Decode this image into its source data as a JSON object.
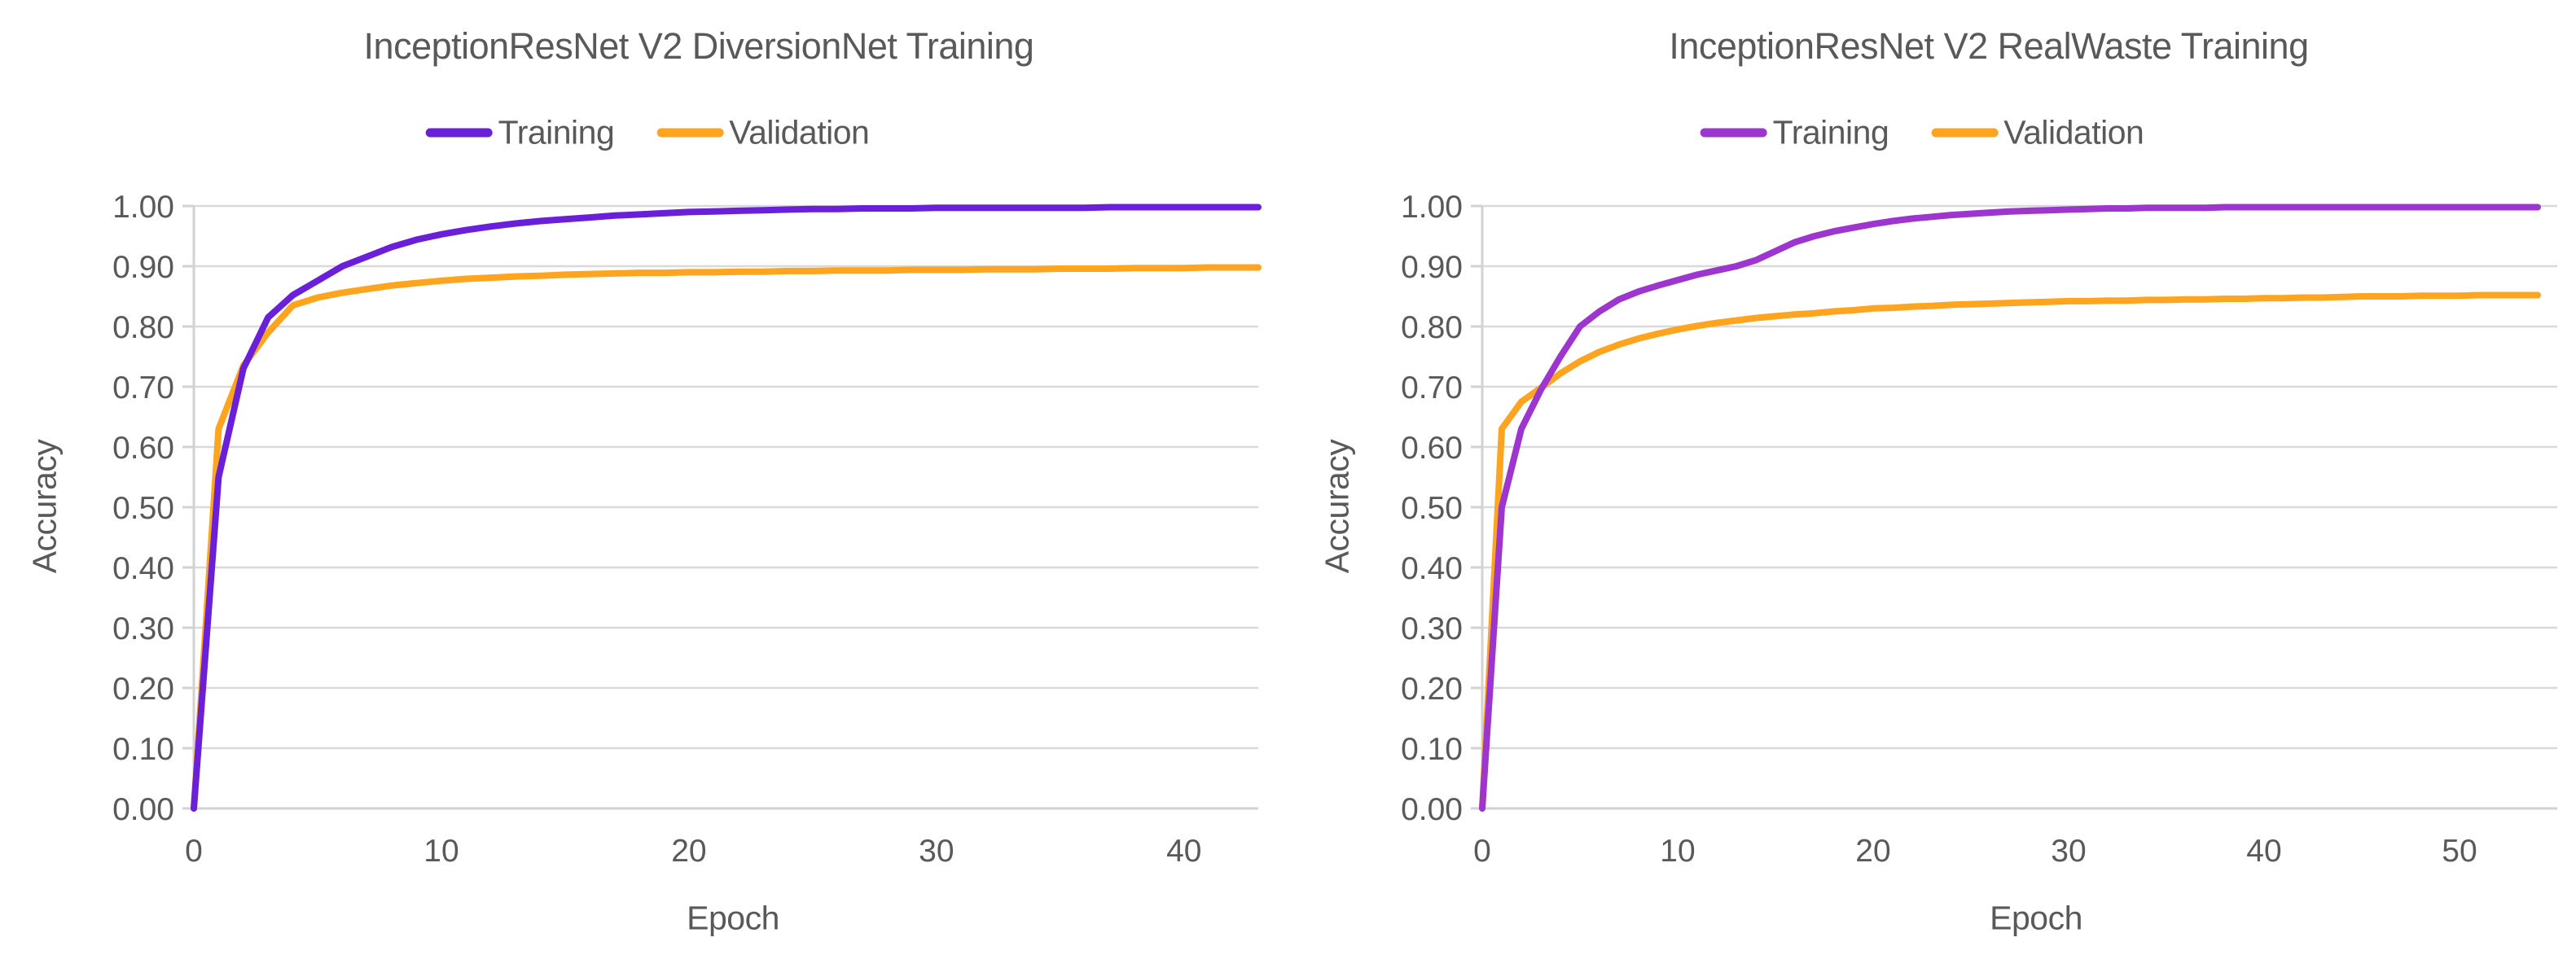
{
  "style": {
    "background": "#ffffff",
    "text_color": "#595959",
    "grid_color": "#d9d9d9",
    "axis_color": "#d2d2d2",
    "training_color_left": "#6a1fd9",
    "training_color_right": "#9c36ce",
    "validation_color": "#ffa41e"
  },
  "chart_data": [
    {
      "type": "line",
      "title": "InceptionResNet V2 DiversionNet Training",
      "xlabel": "Epoch",
      "ylabel": "Accuracy",
      "xlim": [
        0,
        43
      ],
      "ylim": [
        0.0,
        1.0
      ],
      "grid": "horizontal",
      "legend_position": "top-center",
      "x_tick_values": [
        0,
        10,
        20,
        30,
        40
      ],
      "x_tick_labels": [
        "0",
        "10",
        "20",
        "30",
        "40"
      ],
      "y_tick_values": [
        0.0,
        0.1,
        0.2,
        0.3,
        0.4,
        0.5,
        0.6,
        0.7,
        0.8,
        0.9,
        1.0
      ],
      "y_tick_labels": [
        "0.00",
        "0.10",
        "0.20",
        "0.30",
        "0.40",
        "0.50",
        "0.60",
        "0.70",
        "0.80",
        "0.90",
        "1.00"
      ],
      "series": [
        {
          "name": "Training",
          "color": "#6a1fd9",
          "x_start": 0,
          "x_step": 1,
          "values": [
            0.0,
            0.55,
            0.73,
            0.815,
            0.852,
            0.876,
            0.9,
            0.916,
            0.932,
            0.944,
            0.953,
            0.96,
            0.966,
            0.971,
            0.975,
            0.978,
            0.981,
            0.984,
            0.986,
            0.988,
            0.99,
            0.991,
            0.992,
            0.993,
            0.994,
            0.995,
            0.995,
            0.996,
            0.996,
            0.996,
            0.997,
            0.997,
            0.997,
            0.997,
            0.997,
            0.997,
            0.997,
            0.998,
            0.998,
            0.998,
            0.998,
            0.998,
            0.998,
            0.998
          ]
        },
        {
          "name": "Validation",
          "color": "#ffa41e",
          "x_start": 0,
          "x_step": 1,
          "values": [
            0.0,
            0.63,
            0.735,
            0.79,
            0.835,
            0.848,
            0.856,
            0.862,
            0.868,
            0.872,
            0.876,
            0.879,
            0.881,
            0.883,
            0.884,
            0.886,
            0.887,
            0.888,
            0.889,
            0.889,
            0.89,
            0.89,
            0.891,
            0.891,
            0.892,
            0.892,
            0.893,
            0.893,
            0.893,
            0.894,
            0.894,
            0.894,
            0.895,
            0.895,
            0.895,
            0.896,
            0.896,
            0.896,
            0.897,
            0.897,
            0.897,
            0.898,
            0.898,
            0.898
          ]
        }
      ]
    },
    {
      "type": "line",
      "title": "InceptionResNet V2 RealWaste Training",
      "xlabel": "Epoch",
      "ylabel": "Accuracy",
      "xlim": [
        0,
        55
      ],
      "ylim": [
        0.0,
        1.0
      ],
      "grid": "horizontal",
      "legend_position": "top-center",
      "x_tick_values": [
        0,
        10,
        20,
        30,
        40,
        50
      ],
      "x_tick_labels": [
        "0",
        "10",
        "20",
        "30",
        "40",
        "50"
      ],
      "y_tick_values": [
        0.0,
        0.1,
        0.2,
        0.3,
        0.4,
        0.5,
        0.6,
        0.7,
        0.8,
        0.9,
        1.0
      ],
      "y_tick_labels": [
        "0.00",
        "0.10",
        "0.20",
        "0.30",
        "0.40",
        "0.50",
        "0.60",
        "0.70",
        "0.80",
        "0.90",
        "1.00"
      ],
      "series": [
        {
          "name": "Training",
          "color": "#9c36ce",
          "x_start": 0,
          "x_step": 1,
          "values": [
            0.0,
            0.5,
            0.63,
            0.695,
            0.75,
            0.8,
            0.825,
            0.845,
            0.858,
            0.868,
            0.877,
            0.886,
            0.893,
            0.9,
            0.91,
            0.925,
            0.94,
            0.95,
            0.958,
            0.964,
            0.97,
            0.975,
            0.979,
            0.982,
            0.985,
            0.987,
            0.989,
            0.991,
            0.992,
            0.993,
            0.994,
            0.995,
            0.996,
            0.996,
            0.997,
            0.997,
            0.997,
            0.997,
            0.998,
            0.998,
            0.998,
            0.998,
            0.998,
            0.998,
            0.998,
            0.998,
            0.998,
            0.998,
            0.998,
            0.998,
            0.998,
            0.998,
            0.998,
            0.998,
            0.998
          ]
        },
        {
          "name": "Validation",
          "color": "#ffa41e",
          "x_start": 0,
          "x_step": 1,
          "values": [
            0.0,
            0.63,
            0.675,
            0.698,
            0.722,
            0.742,
            0.758,
            0.77,
            0.78,
            0.788,
            0.795,
            0.801,
            0.806,
            0.81,
            0.814,
            0.817,
            0.82,
            0.822,
            0.825,
            0.827,
            0.83,
            0.831,
            0.833,
            0.834,
            0.836,
            0.837,
            0.838,
            0.839,
            0.84,
            0.841,
            0.842,
            0.842,
            0.843,
            0.843,
            0.844,
            0.844,
            0.845,
            0.845,
            0.846,
            0.846,
            0.847,
            0.847,
            0.848,
            0.848,
            0.849,
            0.85,
            0.85,
            0.85,
            0.851,
            0.851,
            0.851,
            0.852,
            0.852,
            0.852,
            0.852
          ]
        }
      ]
    }
  ]
}
